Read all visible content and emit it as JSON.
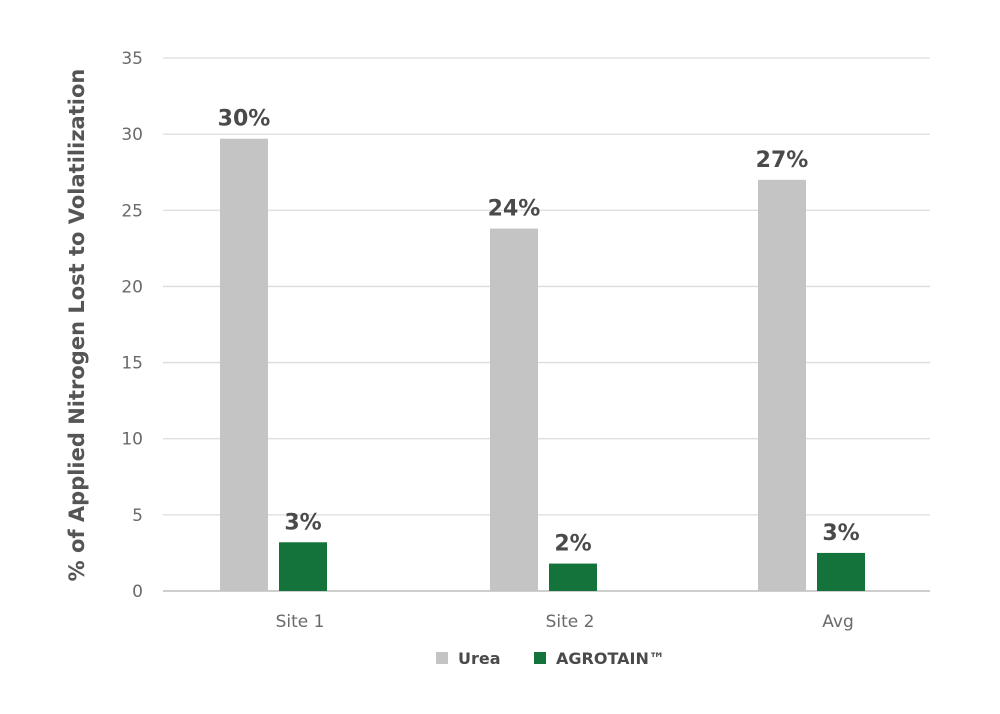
{
  "chart_data": {
    "type": "bar",
    "ylabel": "% of Applied Nitrogen Lost to Volatilization",
    "xlabel": "",
    "categories": [
      "Site 1",
      "Site 2",
      "Avg"
    ],
    "series": [
      {
        "name": "Urea",
        "color": "#c4c4c4",
        "values": [
          29.7,
          23.8,
          27.0
        ],
        "labels": [
          "30%",
          "24%",
          "27%"
        ]
      },
      {
        "name": "AGROTAIN™",
        "color": "#13733a",
        "values": [
          3.2,
          1.8,
          2.5
        ],
        "labels": [
          "3%",
          "2%",
          "3%"
        ]
      }
    ],
    "ylim": [
      0,
      35
    ],
    "yticks": [
      0,
      5,
      10,
      15,
      20,
      25,
      30,
      35
    ],
    "grid": true,
    "legend_position": "bottom-center",
    "gridline_color": "#dcdcdc",
    "axis_color": "#bdbdbd"
  }
}
